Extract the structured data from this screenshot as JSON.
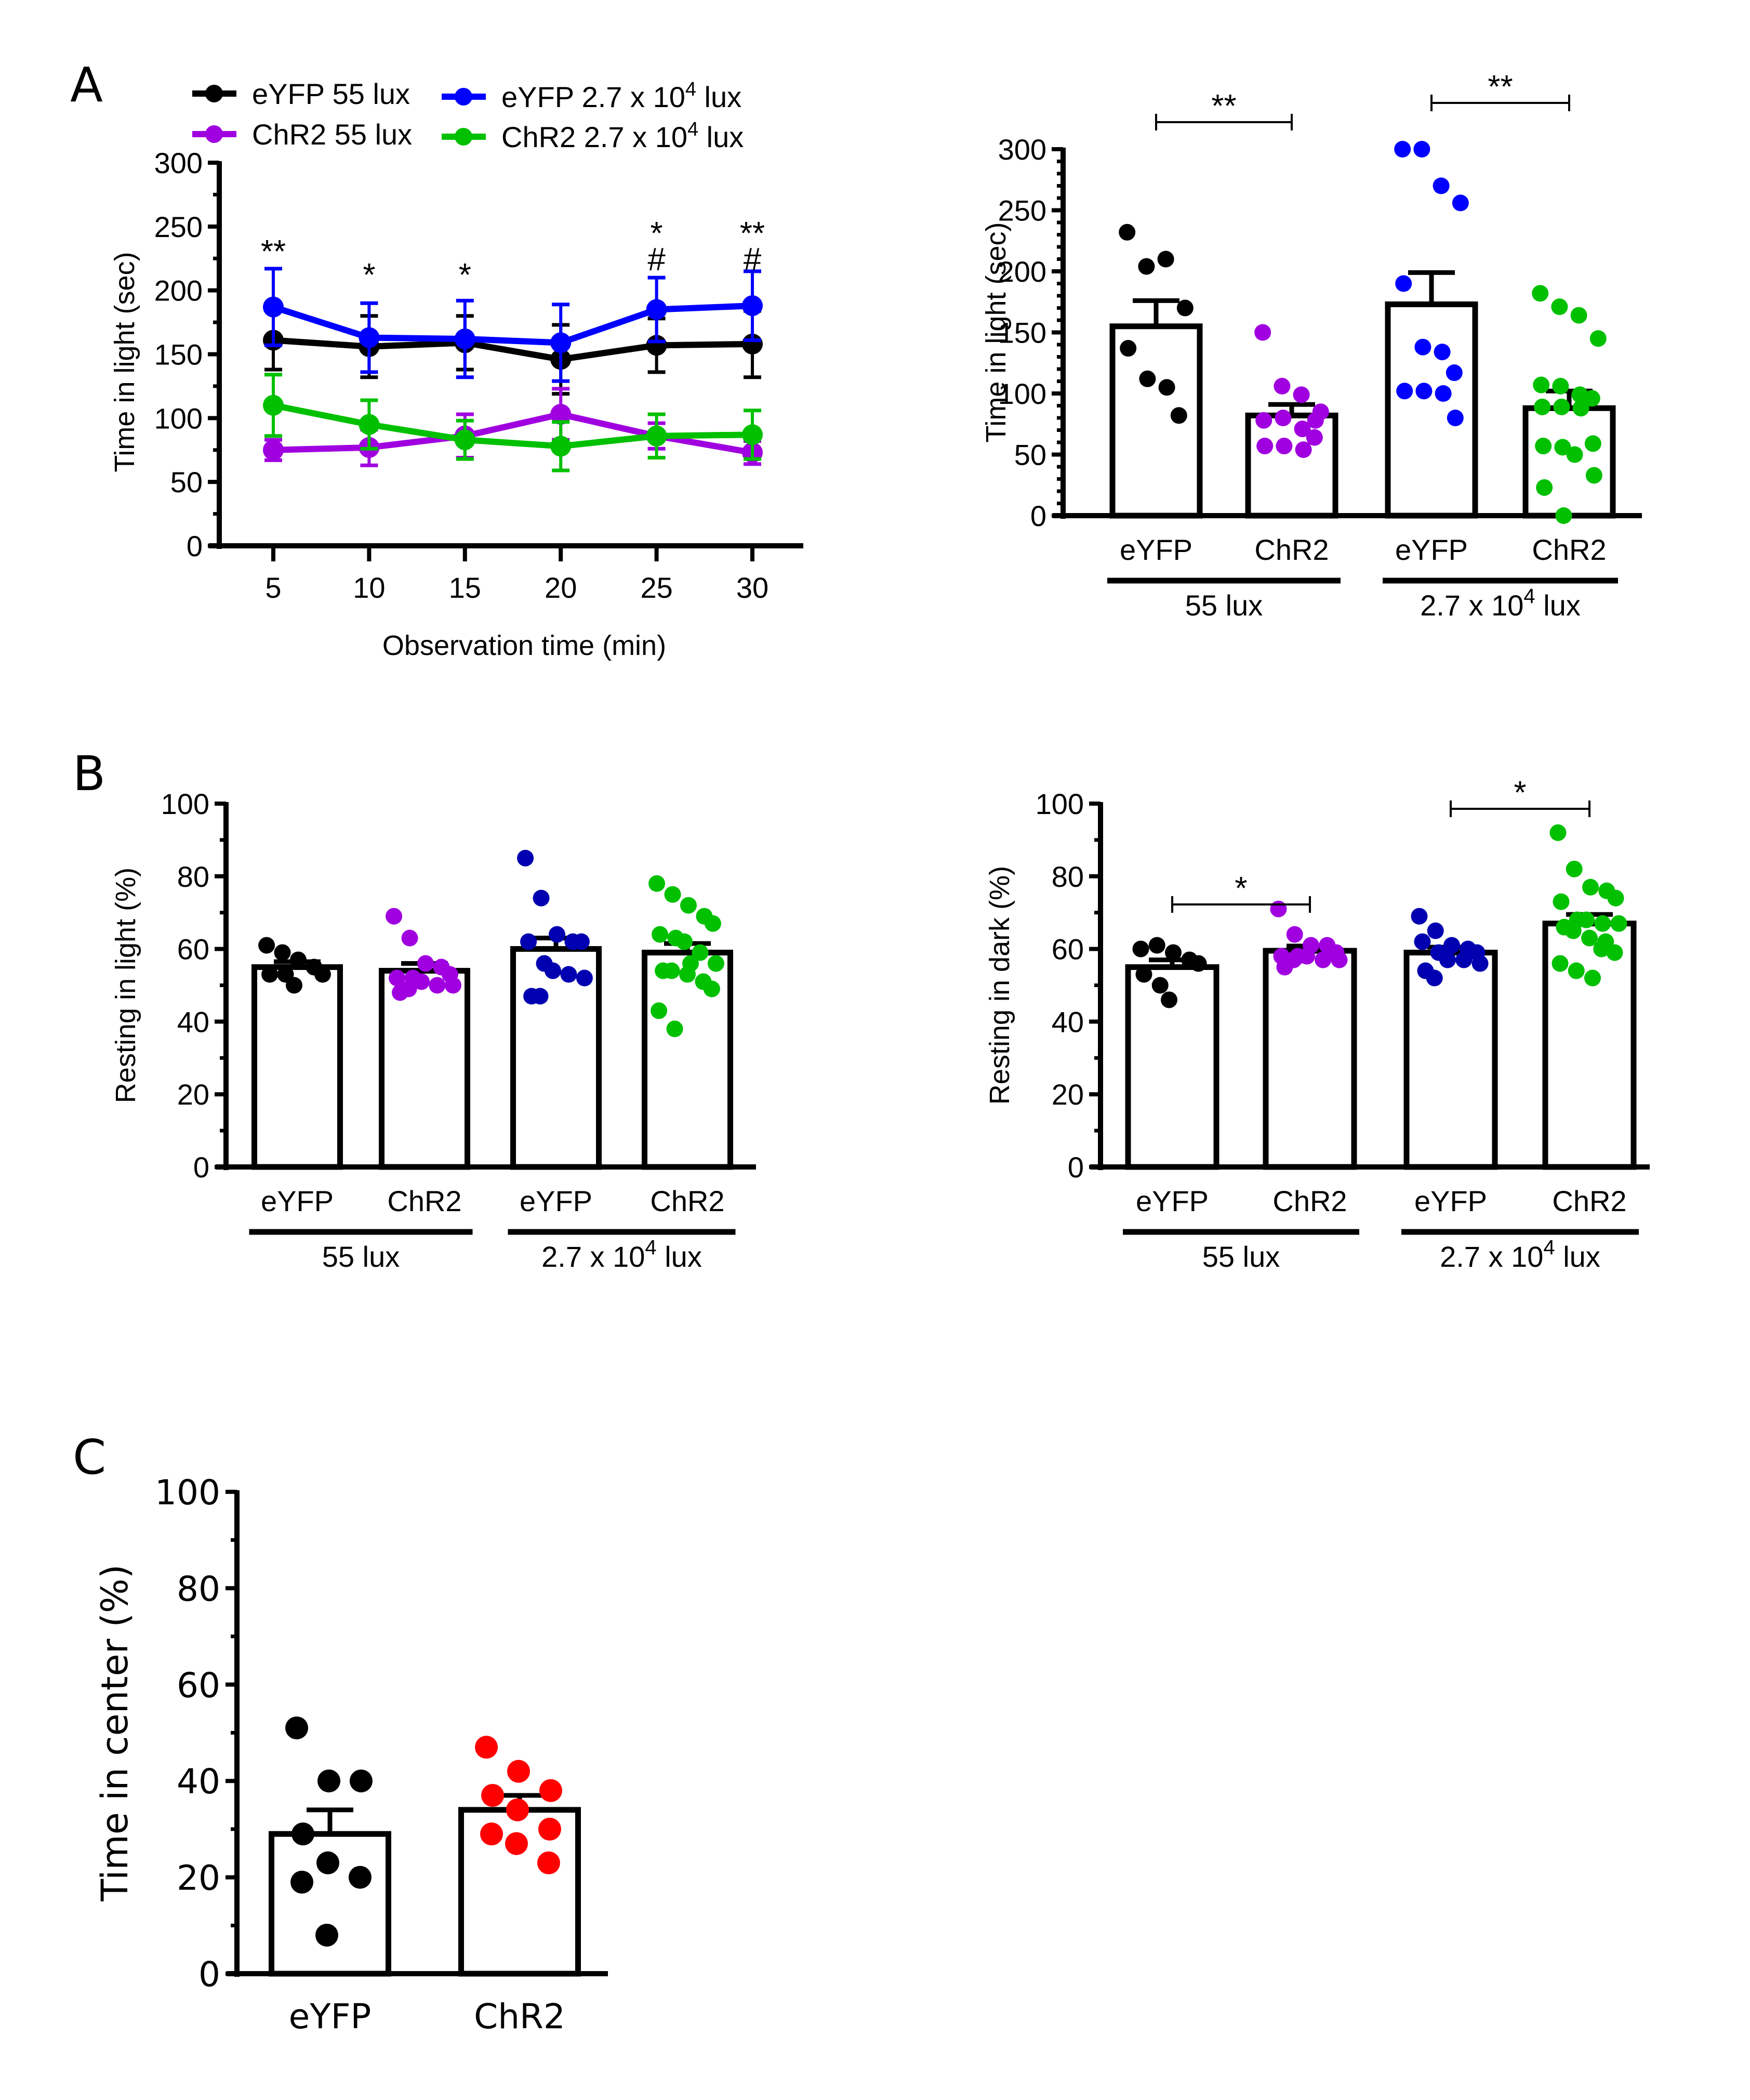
{
  "panels": {
    "A": "A",
    "B": "B",
    "C": "C"
  },
  "chart_data": [
    {
      "id": "A-line",
      "type": "line",
      "title": "",
      "xlabel": "Observation time (min)",
      "ylabel": "Time in light  (sec)",
      "x": [
        5,
        10,
        15,
        20,
        25,
        30
      ],
      "xticks": [
        "5",
        "10",
        "15",
        "20",
        "25",
        "30"
      ],
      "ylim": [
        0,
        300
      ],
      "yticks": [
        "0",
        "50",
        "100",
        "150",
        "200",
        "250",
        "300"
      ],
      "legend_position": "top",
      "series": [
        {
          "name": "eYFP 55 lux",
          "color": "#000000",
          "values": [
            161,
            156,
            159,
            146,
            157,
            158
          ],
          "sem": [
            23,
            24,
            21,
            27,
            21,
            26
          ]
        },
        {
          "name": "ChR2 55 lux",
          "color": "#a000e0",
          "values": [
            75,
            77,
            86,
            103,
            86,
            73
          ],
          "sem": [
            8,
            14,
            17,
            20,
            10,
            9
          ]
        },
        {
          "name": "eYFP 2.7 x 10^4 lux",
          "legend_base": "eYFP 2.7 x 10",
          "legend_sup": "4",
          "legend_tail": " lux",
          "color": "#0000ff",
          "values": [
            187,
            163,
            162,
            159,
            185,
            188
          ],
          "sem": [
            30,
            27,
            30,
            30,
            25,
            27
          ]
        },
        {
          "name": "ChR2 2.7 x 10^4 lux",
          "legend_base": "ChR2 2.7 x 10",
          "legend_sup": "4",
          "legend_tail": " lux",
          "color": "#00c000",
          "values": [
            110,
            95,
            83,
            78,
            86,
            87
          ],
          "sem": [
            24,
            19,
            15,
            19,
            17,
            19
          ]
        }
      ],
      "annotations": [
        {
          "x": 5,
          "lines": [
            "**"
          ]
        },
        {
          "x": 10,
          "lines": [
            "*"
          ]
        },
        {
          "x": 15,
          "lines": [
            "*"
          ]
        },
        {
          "x": 25,
          "lines": [
            "*",
            "#"
          ]
        },
        {
          "x": 30,
          "lines": [
            "**",
            "#"
          ]
        }
      ]
    },
    {
      "id": "A-bar",
      "type": "bar",
      "ylabel": "Time in light (sec)",
      "ylim": [
        0,
        300
      ],
      "yticks": [
        "0",
        "50",
        "100",
        "150",
        "200",
        "250",
        "300"
      ],
      "categories": [
        "eYFP",
        "ChR2",
        "eYFP",
        "ChR2"
      ],
      "groups": [
        {
          "label": "55 lux",
          "span": [
            0,
            1
          ]
        },
        {
          "label_base": "2.7 x 10",
          "label_sup": "4",
          "label_tail": " lux",
          "span": [
            2,
            3
          ]
        }
      ],
      "means": [
        155,
        82,
        173,
        88
      ],
      "sem": [
        21,
        9,
        26,
        14
      ],
      "colors": [
        "#000000",
        "#a000e0",
        "#0000ff",
        "#00c000"
      ],
      "points": [
        [
          232,
          204,
          210,
          170,
          137,
          112,
          105,
          82
        ],
        [
          150,
          106,
          99,
          85,
          78,
          80,
          71,
          64,
          57,
          57,
          54,
          78
        ],
        [
          300,
          300,
          270,
          256,
          190,
          138,
          134,
          117,
          102,
          102,
          100,
          80
        ],
        [
          182,
          171,
          164,
          145,
          107,
          106,
          99,
          96,
          89,
          89,
          88,
          59,
          57,
          56,
          50,
          33,
          23,
          0
        ]
      ],
      "significance": [
        {
          "from": 0,
          "to": 1,
          "label": "**"
        },
        {
          "from": 2,
          "to": 3,
          "label": "**"
        }
      ]
    },
    {
      "id": "B-light",
      "type": "bar",
      "ylabel": "Resting in light (%)",
      "ylim": [
        0,
        100
      ],
      "yticks": [
        "0",
        "20",
        "40",
        "60",
        "80",
        "100"
      ],
      "categories": [
        "eYFP",
        "ChR2",
        "eYFP",
        "ChR2"
      ],
      "groups": [
        {
          "label": "55 lux",
          "span": [
            0,
            1
          ]
        },
        {
          "label_base": "2.7 x 10",
          "label_sup": "4",
          "label_tail": " lux",
          "span": [
            2,
            3
          ]
        }
      ],
      "means": [
        55,
        54,
        60,
        59
      ],
      "sem": [
        1.5,
        2,
        3,
        2.5
      ],
      "colors": [
        "#000000",
        "#a000e0",
        "#0000b0",
        "#00c000"
      ],
      "points": [
        [
          61,
          59,
          57,
          55,
          53,
          53,
          53,
          50
        ],
        [
          69,
          63,
          56,
          55,
          53,
          52,
          52,
          51,
          50,
          50,
          48,
          49
        ],
        [
          85,
          74,
          64,
          62,
          62,
          62,
          56,
          54,
          53,
          52,
          47,
          47
        ],
        [
          78,
          75,
          72,
          69,
          67,
          64,
          63,
          62,
          59,
          56,
          54,
          54,
          53,
          51,
          49,
          43,
          38,
          56
        ]
      ],
      "significance": []
    },
    {
      "id": "B-dark",
      "type": "bar",
      "ylabel": "Resting in dark (%)",
      "ylim": [
        0,
        100
      ],
      "yticks": [
        "0",
        "20",
        "40",
        "60",
        "80",
        "100"
      ],
      "categories": [
        "eYFP",
        "ChR2",
        "eYFP",
        "ChR2"
      ],
      "groups": [
        {
          "label": "55 lux",
          "span": [
            0,
            1
          ]
        },
        {
          "label_base": "2.7 x 10",
          "label_sup": "4",
          "label_tail": " lux",
          "span": [
            2,
            3
          ]
        }
      ],
      "means": [
        55,
        59.5,
        59,
        67
      ],
      "sem": [
        2,
        1.3,
        1.5,
        2.5
      ],
      "colors": [
        "#000000",
        "#a000e0",
        "#0000b0",
        "#00c000"
      ],
      "points": [
        [
          60,
          61,
          59,
          57,
          56,
          53,
          50,
          46
        ],
        [
          71,
          64,
          61,
          61,
          59,
          58,
          58,
          58,
          57,
          57,
          55,
          57
        ],
        [
          69,
          65,
          61,
          60,
          59,
          62,
          59,
          57,
          57,
          56,
          54,
          52
        ],
        [
          92,
          82,
          77,
          76,
          74,
          73,
          68,
          68,
          67,
          67,
          66,
          65,
          63,
          62,
          59,
          56,
          54,
          52,
          60
        ]
      ],
      "significance": [
        {
          "from": 0,
          "to": 1,
          "label": "*"
        },
        {
          "from": 2,
          "to": 3,
          "label": "*"
        }
      ]
    },
    {
      "id": "C-center",
      "type": "bar",
      "ylabel": "Time in center (%)",
      "ylim": [
        0,
        100
      ],
      "yticks": [
        "0",
        "20",
        "40",
        "60",
        "80",
        "100"
      ],
      "categories": [
        "eYFP",
        "ChR2"
      ],
      "means": [
        29,
        34
      ],
      "sem": [
        5,
        3
      ],
      "colors": [
        "#000000",
        "#ff0000"
      ],
      "points": [
        [
          51,
          40,
          40,
          29,
          23,
          20,
          19,
          8
        ],
        [
          47,
          42,
          38,
          37,
          34,
          30,
          29,
          27,
          23
        ]
      ],
      "significance": []
    }
  ]
}
